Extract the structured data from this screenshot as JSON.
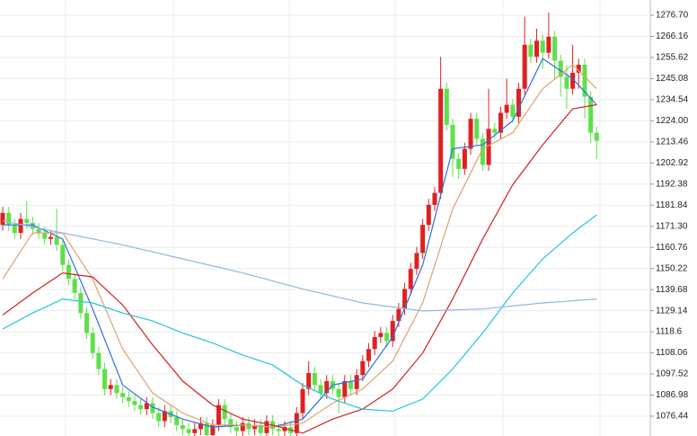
{
  "chart_data": {
    "type": "candlestick",
    "ylim": [
      1066.56,
      1284.33
    ],
    "yticks": [
      {
        "value": 1276.7,
        "label": "1276.70"
      },
      1266.16,
      1255.62,
      1245.08,
      1234.54,
      {
        "value": 1224,
        "label": "1224.00"
      },
      1213.46,
      1202.92,
      1192.38,
      1181.84,
      {
        "value": 1171.3,
        "label": "1171.30"
      },
      1160.76,
      1150.22,
      1139.68,
      1129.14,
      1118.6,
      1108.06,
      1097.52,
      1086.98,
      1076.44
    ],
    "grid": true,
    "up_color": "#e02020",
    "down_color": "#5ee04a",
    "open": [
      1172,
      1178,
      1172,
      1168,
      1175,
      1173,
      1170,
      1168,
      1165,
      1166,
      1162,
      1152,
      1145,
      1138,
      1128,
      1118,
      1108,
      1100,
      1090,
      1092,
      1088,
      1086,
      1084,
      1082,
      1080,
      1083,
      1078,
      1074,
      1079,
      1076,
      1072,
      1070,
      1068,
      1070,
      1073,
      1067,
      1072,
      1082,
      1075,
      1071,
      1069,
      1073,
      1070,
      1072,
      1068,
      1074,
      1070,
      1069,
      1071,
      1068,
      1078,
      1090,
      1098,
      1092,
      1088,
      1094,
      1090,
      1086,
      1094,
      1090,
      1097,
      1104,
      1110,
      1116,
      1118,
      1114,
      1124,
      1130,
      1140,
      1150,
      1158,
      1172,
      1182,
      1188,
      1240,
      1222,
      1205,
      1200,
      1210,
      1225,
      1215,
      1202,
      1220,
      1218,
      1228,
      1232,
      1226,
      1240,
      1262,
      1256,
      1264,
      1258,
      1266,
      1254,
      1246,
      1240,
      1248,
      1252,
      1236,
      1218
    ],
    "high": [
      1181,
      1181,
      1175,
      1178,
      1184,
      1176,
      1173,
      1171,
      1169,
      1180,
      1165,
      1155,
      1148,
      1141,
      1131,
      1121,
      1111,
      1103,
      1095,
      1095,
      1091,
      1089,
      1087,
      1085,
      1086,
      1086,
      1081,
      1082,
      1082,
      1079,
      1075,
      1073,
      1073,
      1076,
      1076,
      1075,
      1085,
      1085,
      1078,
      1074,
      1076,
      1076,
      1075,
      1075,
      1077,
      1077,
      1073,
      1074,
      1074,
      1081,
      1093,
      1104,
      1101,
      1095,
      1097,
      1097,
      1093,
      1097,
      1097,
      1100,
      1107,
      1113,
      1119,
      1121,
      1121,
      1127,
      1133,
      1143,
      1153,
      1161,
      1175,
      1185,
      1191,
      1256,
      1243,
      1225,
      1208,
      1213,
      1228,
      1228,
      1218,
      1240,
      1223,
      1231,
      1245,
      1235,
      1243,
      1276,
      1265,
      1270,
      1267,
      1278,
      1269,
      1257,
      1252,
      1262,
      1255,
      1255,
      1239,
      1221
    ],
    "low": [
      1169,
      1169,
      1165,
      1165,
      1170,
      1167,
      1165,
      1162,
      1162,
      1159,
      1149,
      1142,
      1135,
      1125,
      1115,
      1105,
      1097,
      1087,
      1087,
      1085,
      1083,
      1081,
      1079,
      1077,
      1077,
      1075,
      1071,
      1071,
      1073,
      1069,
      1067,
      1065,
      1065,
      1067,
      1064,
      1064,
      1069,
      1072,
      1068,
      1066,
      1066,
      1067,
      1067,
      1065,
      1065,
      1067,
      1066,
      1066,
      1065,
      1065,
      1075,
      1087,
      1089,
      1085,
      1085,
      1087,
      1078,
      1083,
      1087,
      1087,
      1094,
      1101,
      1107,
      1113,
      1111,
      1111,
      1121,
      1127,
      1137,
      1147,
      1155,
      1169,
      1179,
      1185,
      1219,
      1196,
      1195,
      1197,
      1207,
      1212,
      1199,
      1199,
      1215,
      1215,
      1225,
      1223,
      1223,
      1237,
      1253,
      1253,
      1250,
      1255,
      1245,
      1236,
      1230,
      1237,
      1240,
      1225,
      1213,
      1205
    ],
    "close": [
      1178,
      1172,
      1168,
      1175,
      1173,
      1170,
      1168,
      1165,
      1166,
      1162,
      1152,
      1145,
      1138,
      1128,
      1118,
      1108,
      1100,
      1090,
      1092,
      1088,
      1086,
      1084,
      1082,
      1080,
      1083,
      1078,
      1074,
      1079,
      1076,
      1072,
      1070,
      1068,
      1070,
      1073,
      1067,
      1072,
      1082,
      1075,
      1071,
      1069,
      1073,
      1070,
      1072,
      1068,
      1074,
      1070,
      1069,
      1071,
      1068,
      1078,
      1090,
      1098,
      1092,
      1088,
      1094,
      1090,
      1086,
      1094,
      1090,
      1097,
      1104,
      1110,
      1116,
      1118,
      1114,
      1124,
      1130,
      1140,
      1150,
      1158,
      1172,
      1182,
      1188,
      1240,
      1222,
      1205,
      1200,
      1210,
      1225,
      1215,
      1202,
      1220,
      1218,
      1228,
      1232,
      1226,
      1240,
      1262,
      1256,
      1264,
      1258,
      1266,
      1254,
      1246,
      1240,
      1248,
      1252,
      1236,
      1218,
      1214
    ],
    "lines": [
      {
        "color": "#2b6fe0",
        "x": [
          0,
          5,
          10,
          15,
          20,
          25,
          30,
          35,
          40,
          45,
          50,
          55,
          60,
          65,
          70,
          75,
          80,
          85,
          90,
          95,
          99
        ],
        "values": [
          1172,
          1172,
          1165,
          1130,
          1092,
          1081,
          1075,
          1071,
          1072,
          1071,
          1075,
          1092,
          1095,
          1116,
          1152,
          1210,
          1212,
          1224,
          1255,
          1245,
          1232
        ]
      },
      {
        "color": "#e0a070",
        "x": [
          0,
          5,
          10,
          15,
          20,
          25,
          30,
          35,
          40,
          45,
          50,
          55,
          60,
          65,
          70,
          75,
          80,
          85,
          90,
          95,
          99
        ],
        "values": [
          1145,
          1168,
          1168,
          1145,
          1110,
          1088,
          1078,
          1072,
          1072,
          1071,
          1073,
          1083,
          1090,
          1104,
          1133,
          1180,
          1210,
          1218,
          1240,
          1252,
          1240
        ]
      },
      {
        "color": "#d42020",
        "x": [
          0,
          5,
          10,
          15,
          20,
          25,
          30,
          35,
          40,
          45,
          50,
          55,
          60,
          65,
          70,
          75,
          80,
          85,
          90,
          95,
          99
        ],
        "values": [
          1127,
          1138,
          1148,
          1146,
          1132,
          1112,
          1094,
          1082,
          1075,
          1072,
          1068,
          1075,
          1080,
          1090,
          1108,
          1135,
          1165,
          1192,
          1212,
          1230,
          1232
        ]
      },
      {
        "color": "#22c4e0",
        "x": [
          0,
          5,
          10,
          15,
          20,
          25,
          30,
          35,
          40,
          45,
          50,
          55,
          60,
          65,
          70,
          75,
          80,
          85,
          90,
          95,
          99
        ],
        "values": [
          1120,
          1128,
          1135,
          1133,
          1128,
          1124,
          1118,
          1113,
          1107,
          1102,
          1092,
          1085,
          1080,
          1079,
          1085,
          1100,
          1118,
          1138,
          1155,
          1168,
          1177
        ]
      },
      {
        "color": "#94b4e4",
        "x": [
          0,
          10,
          20,
          30,
          40,
          50,
          60,
          70,
          80,
          90,
          99
        ],
        "values": [
          1174,
          1168,
          1162,
          1155,
          1148,
          1140,
          1133,
          1129,
          1130,
          1133,
          1135
        ]
      }
    ]
  }
}
